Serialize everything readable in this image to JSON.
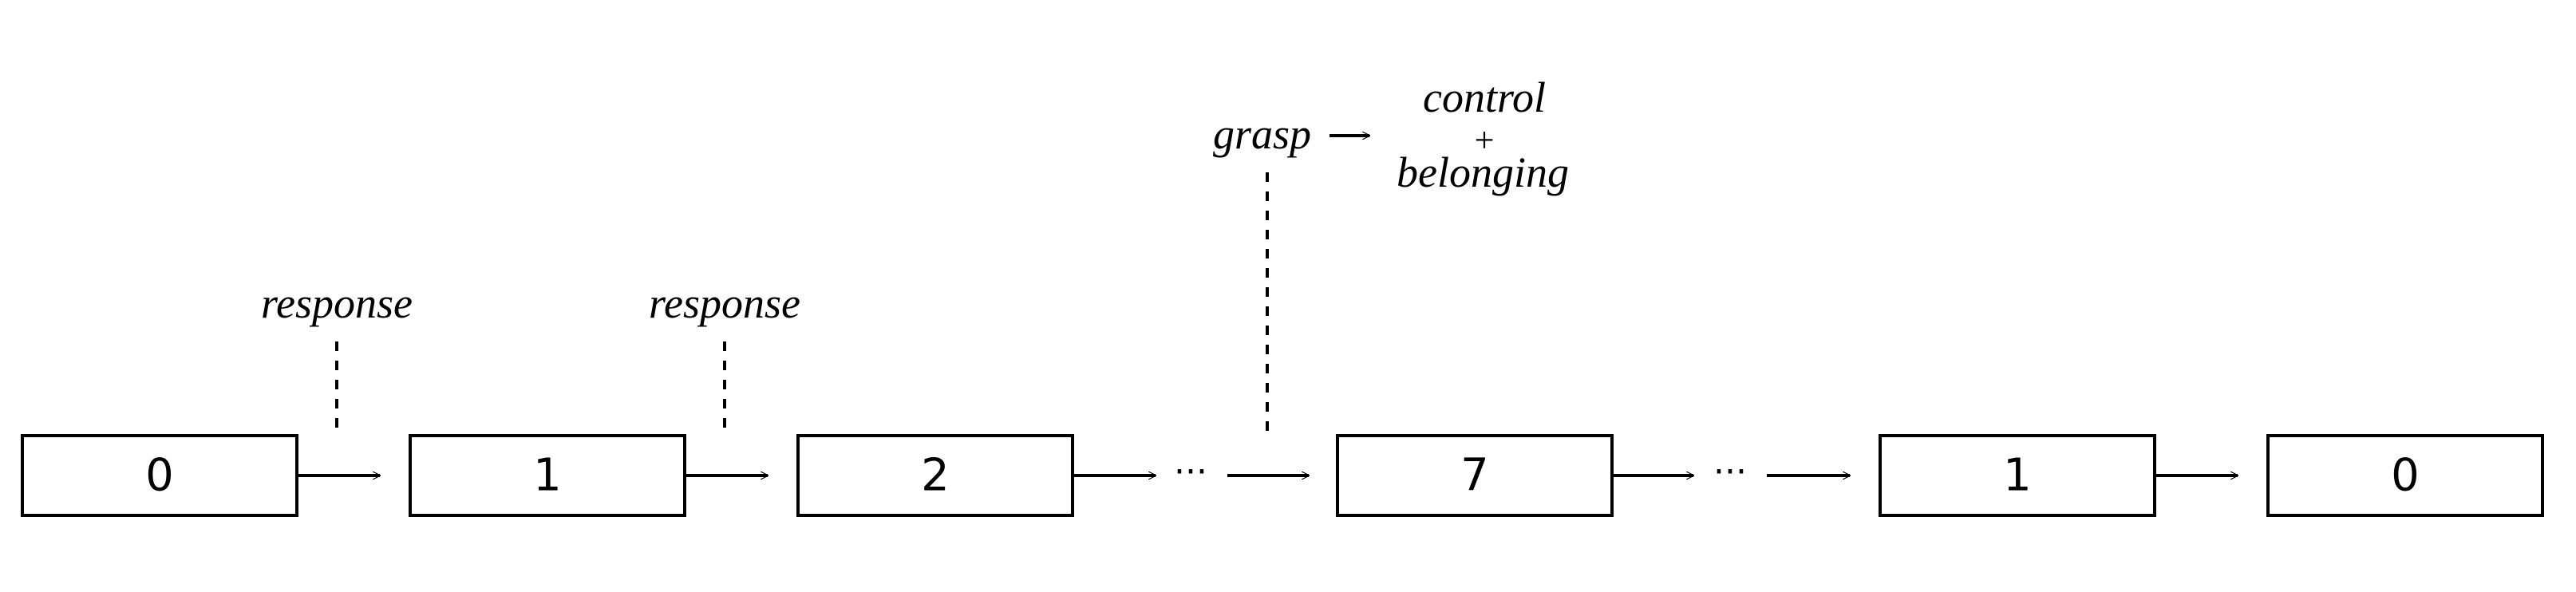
{
  "diagram": {
    "boxes": [
      {
        "label": "0"
      },
      {
        "label": "1"
      },
      {
        "label": "2"
      },
      {
        "label": "7"
      },
      {
        "label": "1"
      },
      {
        "label": "0"
      }
    ],
    "ellipsis": "···",
    "annotations": {
      "response_1": "response",
      "response_2": "response",
      "grasp": "grasp",
      "control": "control",
      "plus": "+",
      "belonging": "belonging"
    },
    "colors": {
      "stroke": "#000000",
      "background": "#ffffff"
    }
  }
}
